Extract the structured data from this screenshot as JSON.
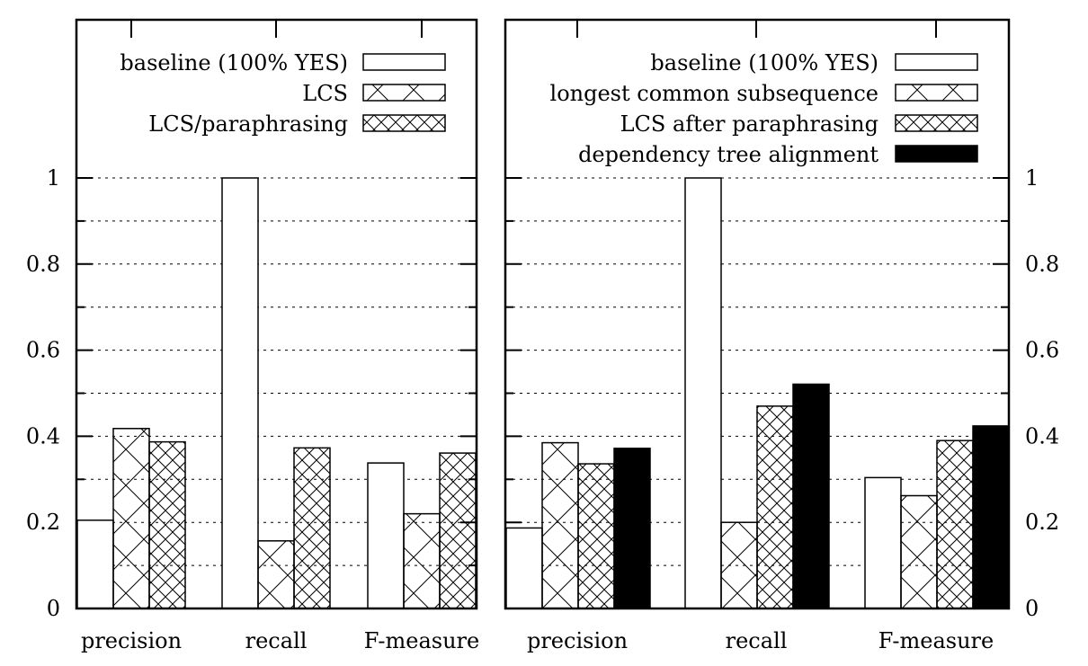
{
  "chart_data": [
    {
      "type": "bar",
      "categories": [
        "precision",
        "recall",
        "F-measure"
      ],
      "ylim": [
        0,
        1
      ],
      "yticks": [
        "0",
        "0.2",
        "0.4",
        "0.6",
        "0.8",
        "1"
      ],
      "ytick_side": "left",
      "grid": true,
      "legend_position": "top-right",
      "series": [
        {
          "name": "baseline (100% YES)",
          "values": [
            0.205,
            1.0,
            0.338
          ],
          "pattern": "none"
        },
        {
          "name": "LCS",
          "values": [
            0.418,
            0.157,
            0.22
          ],
          "pattern": "sparse-cross"
        },
        {
          "name": "LCS/paraphrasing",
          "values": [
            0.387,
            0.373,
            0.361
          ],
          "pattern": "dense-cross"
        }
      ]
    },
    {
      "type": "bar",
      "categories": [
        "precision",
        "recall",
        "F-measure"
      ],
      "ylim": [
        0,
        1
      ],
      "yticks": [
        "0",
        "0.2",
        "0.4",
        "0.6",
        "0.8",
        "1"
      ],
      "ytick_side": "right",
      "grid": true,
      "legend_position": "top-right",
      "series": [
        {
          "name": "baseline (100% YES)",
          "values": [
            0.187,
            1.0,
            0.304
          ],
          "pattern": "none"
        },
        {
          "name": "longest common subsequence",
          "values": [
            0.385,
            0.2,
            0.262
          ],
          "pattern": "sparse-cross"
        },
        {
          "name": "LCS after paraphrasing",
          "values": [
            0.336,
            0.47,
            0.39
          ],
          "pattern": "dense-cross"
        },
        {
          "name": "dependency tree alignment",
          "values": [
            0.372,
            0.521,
            0.424
          ],
          "pattern": "solid"
        }
      ]
    }
  ]
}
